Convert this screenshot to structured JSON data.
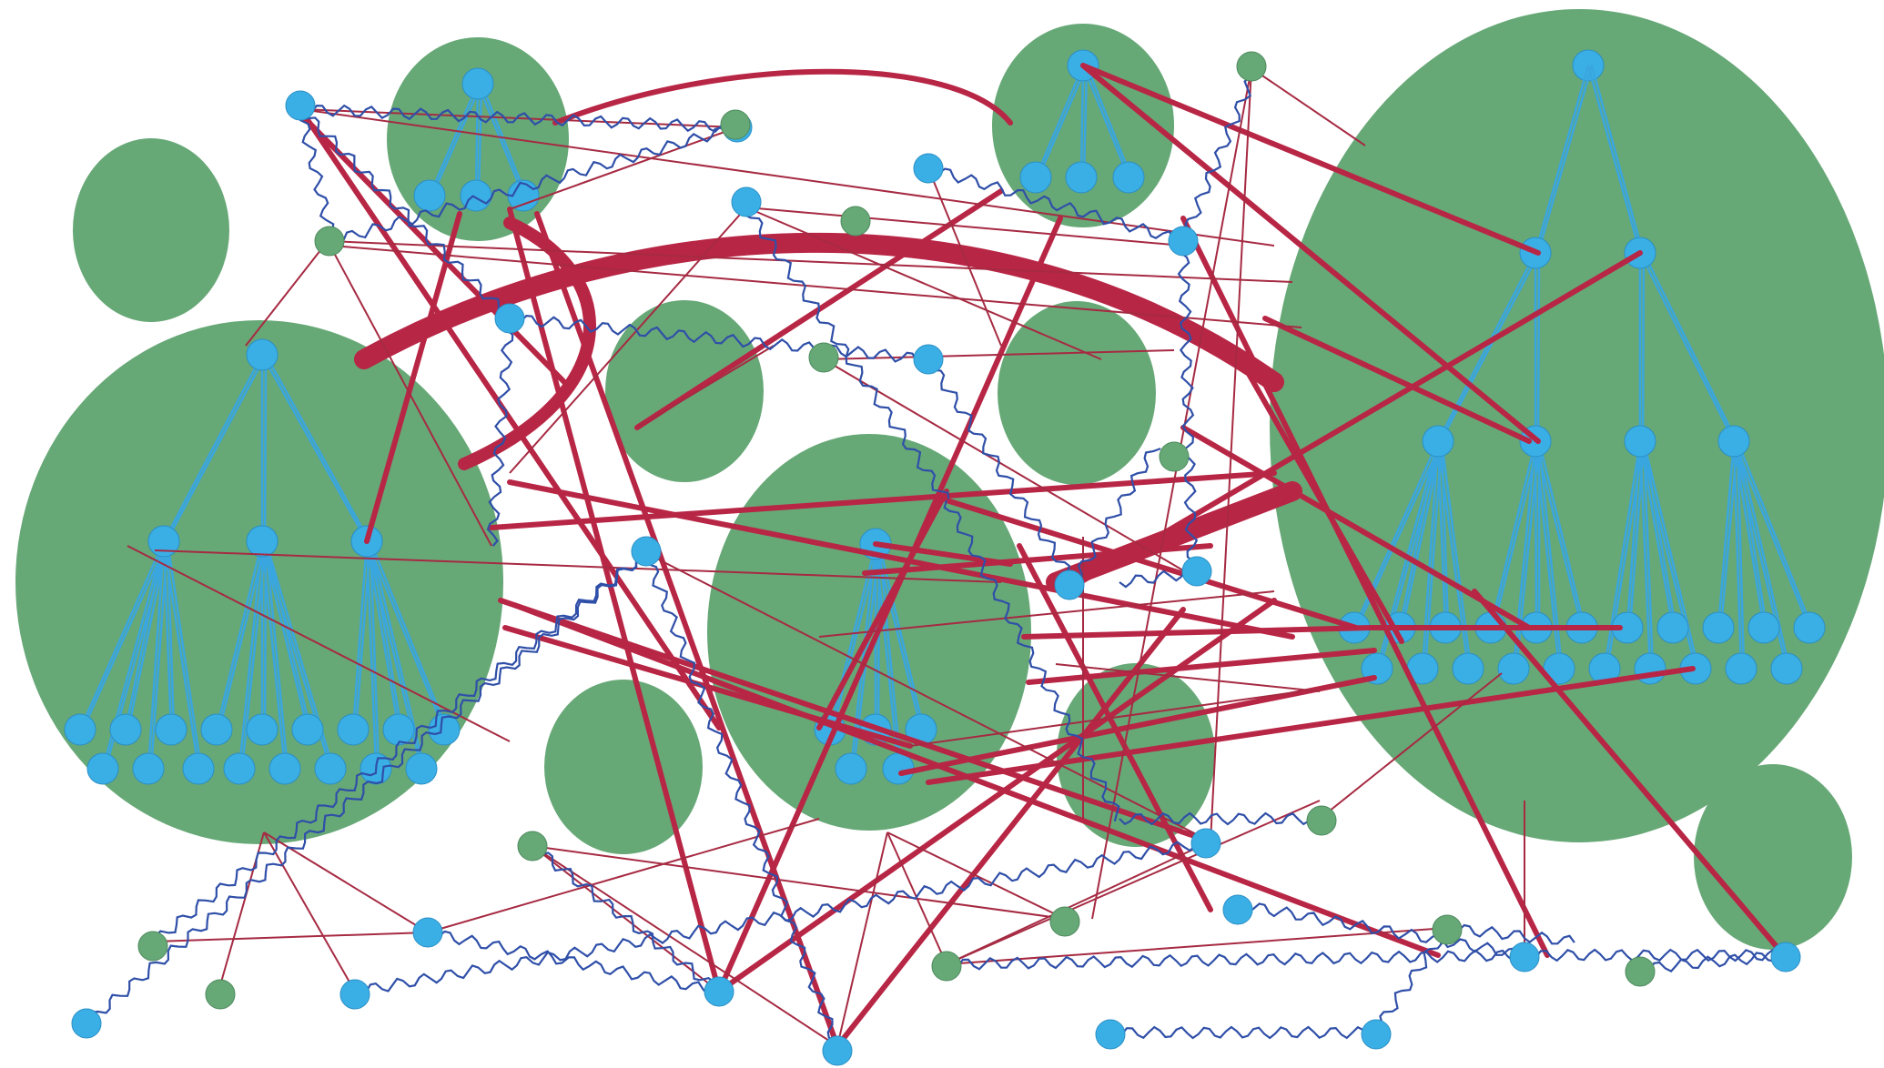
{
  "diagram": {
    "colors": {
      "background": "#ffffff",
      "cluster_fill": "#67a877",
      "tree": "#3aa6df",
      "node_blue": "#3aafe6",
      "edge_red": "#b82645",
      "wavy_edge": "#2f4fa8"
    },
    "clusters": [
      {
        "name": "cluster-large-left",
        "tree_levels": [
          1,
          3,
          18
        ]
      },
      {
        "name": "cluster-top-left",
        "tree_levels": [
          1,
          3
        ]
      },
      {
        "name": "cluster-top-center",
        "tree_levels": [
          1,
          3
        ]
      },
      {
        "name": "cluster-center",
        "tree_levels": [
          1,
          6
        ]
      },
      {
        "name": "cluster-large-right",
        "tree_levels": [
          1,
          2,
          4,
          20
        ]
      },
      {
        "name": "cluster-empty-small"
      },
      {
        "name": "cluster-empty-small"
      },
      {
        "name": "cluster-empty-small"
      },
      {
        "name": "cluster-empty-small"
      },
      {
        "name": "cluster-empty-small"
      },
      {
        "name": "cluster-empty-small"
      }
    ]
  }
}
